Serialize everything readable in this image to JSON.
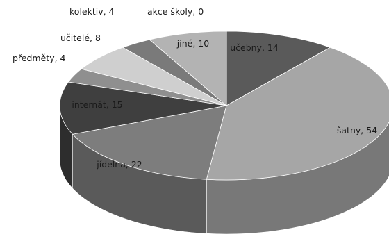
{
  "chart_data": {
    "type": "pie",
    "style": "3d",
    "title": "",
    "legend": "none",
    "slices": [
      {
        "label": "učebny",
        "value": 14,
        "display": "učebny, 14",
        "color": "#5a5a5a"
      },
      {
        "label": "šatny",
        "value": 54,
        "display": "šatny, 54",
        "color": "#a6a6a6"
      },
      {
        "label": "jídelna",
        "value": 22,
        "display": "jídelna, 22",
        "color": "#7d7d7d"
      },
      {
        "label": "internát",
        "value": 15,
        "display": "internát, 15",
        "color": "#3f3f3f"
      },
      {
        "label": "předměty",
        "value": 4,
        "display": "předměty, 4",
        "color": "#8f8f8f"
      },
      {
        "label": "učitelé",
        "value": 8,
        "display": "učitelé, 8",
        "color": "#cfcfcf"
      },
      {
        "label": "kolektiv",
        "value": 4,
        "display": "kolektiv, 4",
        "color": "#7a7a7a"
      },
      {
        "label": "akce školy",
        "value": 0,
        "display": "akce školy, 0",
        "color": "#666666"
      },
      {
        "label": "jiné",
        "value": 10,
        "display": "jiné, 10",
        "color": "#b3b3b3"
      }
    ]
  }
}
